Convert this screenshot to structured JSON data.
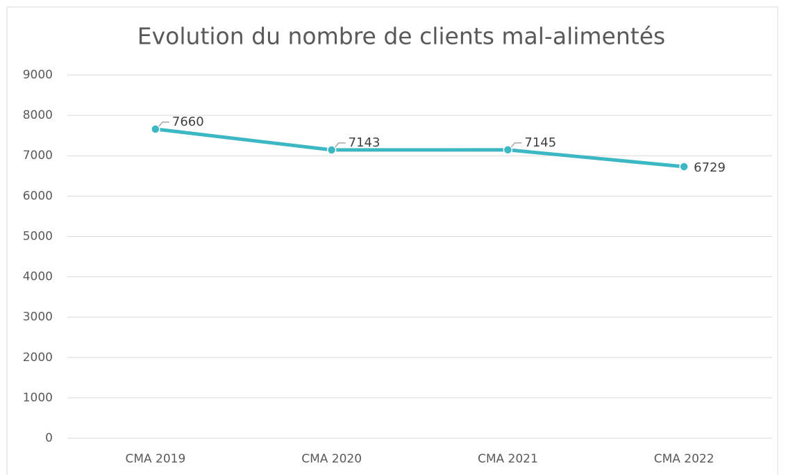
{
  "chart_data": {
    "type": "line",
    "title": "Evolution du nombre de clients mal-alimentés",
    "categories": [
      "CMA 2019",
      "CMA 2020",
      "CMA 2021",
      "CMA 2022"
    ],
    "values": [
      7660,
      7143,
      7145,
      6729
    ],
    "color": "#3cb8c4",
    "ylim": [
      0,
      9000
    ],
    "yticks": [
      0,
      1000,
      2000,
      3000,
      4000,
      5000,
      6000,
      7000,
      8000,
      9000
    ],
    "grid": true
  }
}
